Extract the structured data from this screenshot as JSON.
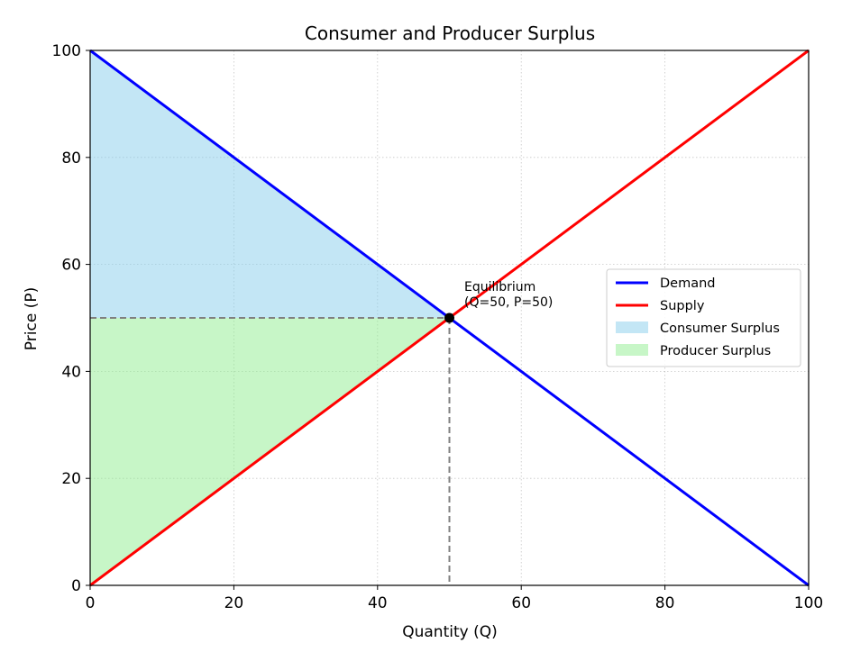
{
  "chart_data": {
    "type": "line",
    "title": "Consumer and Producer Surplus",
    "xlabel": "Quantity (Q)",
    "ylabel": "Price (P)",
    "xlim": [
      0,
      100
    ],
    "ylim": [
      0,
      100
    ],
    "xticks": [
      0,
      20,
      40,
      60,
      80,
      100
    ],
    "yticks": [
      0,
      20,
      40,
      60,
      80,
      100
    ],
    "grid": true,
    "legend_position": "center-right",
    "series": [
      {
        "name": "Demand",
        "color": "#0000ff",
        "points": [
          [
            0,
            100
          ],
          [
            100,
            0
          ]
        ]
      },
      {
        "name": "Supply",
        "color": "#ff0000",
        "points": [
          [
            0,
            0
          ],
          [
            100,
            100
          ]
        ]
      }
    ],
    "areas": [
      {
        "name": "Consumer Surplus",
        "color": "#87ceeb",
        "points": [
          [
            0,
            100
          ],
          [
            50,
            50
          ],
          [
            0,
            50
          ]
        ]
      },
      {
        "name": "Producer Surplus",
        "color": "#90ee90",
        "points": [
          [
            0,
            0
          ],
          [
            50,
            50
          ],
          [
            0,
            50
          ]
        ]
      }
    ],
    "equilibrium": {
      "q": 50,
      "p": 50,
      "label_line1": "Equilibrium",
      "label_line2": "(Q=50, P=50)"
    }
  }
}
